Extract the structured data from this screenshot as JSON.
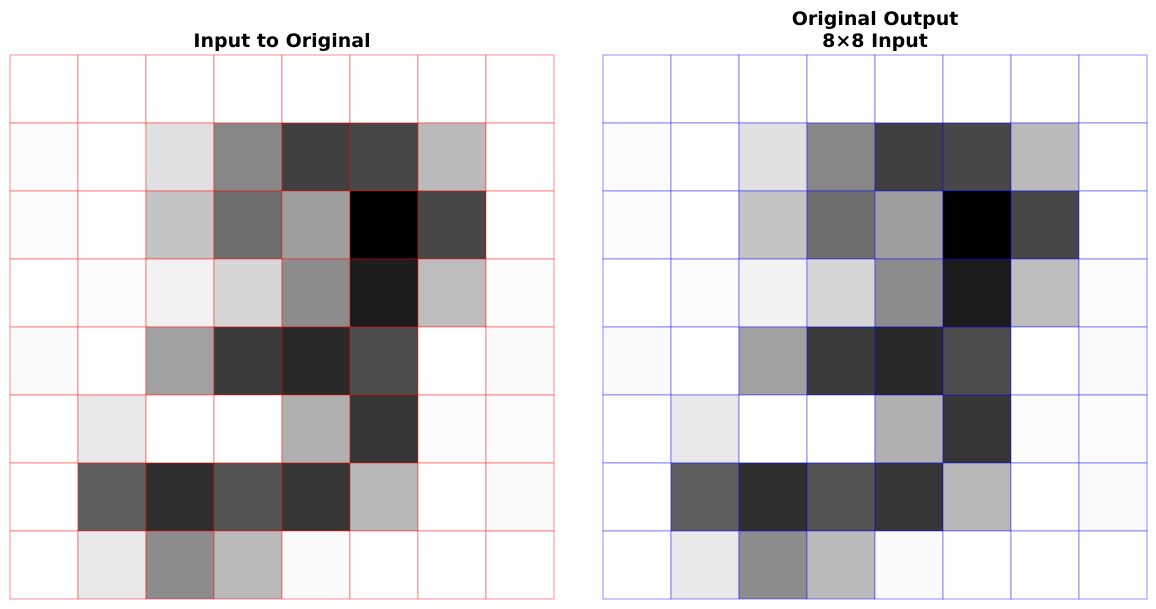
{
  "chart_data": [
    {
      "type": "heatmap",
      "title": "Input to Original",
      "colormap": "gray_r",
      "grid_color": "#ff0000",
      "rows": 8,
      "cols": 8,
      "values": [
        [
          0.0,
          0.0,
          0.0,
          0.0,
          0.0,
          0.0,
          0.0,
          0.0
        ],
        [
          0.01,
          0.0,
          0.12,
          0.47,
          0.75,
          0.72,
          0.27,
          0.0
        ],
        [
          0.01,
          0.0,
          0.23,
          0.57,
          0.38,
          1.0,
          0.72,
          0.0
        ],
        [
          0.0,
          0.01,
          0.05,
          0.16,
          0.45,
          0.89,
          0.26,
          0.01
        ],
        [
          0.02,
          0.0,
          0.37,
          0.77,
          0.84,
          0.7,
          0.0,
          0.02
        ],
        [
          0.0,
          0.09,
          0.0,
          0.0,
          0.31,
          0.79,
          0.01,
          0.01
        ],
        [
          0.0,
          0.63,
          0.82,
          0.68,
          0.79,
          0.28,
          0.0,
          0.02
        ],
        [
          0.0,
          0.09,
          0.45,
          0.27,
          0.02,
          0.0,
          0.0,
          0.0
        ]
      ]
    },
    {
      "type": "heatmap",
      "title": [
        "Original Output",
        "8×8 Input"
      ],
      "colormap": "gray_r",
      "grid_color": "#0000ff",
      "rows": 8,
      "cols": 8,
      "values": [
        [
          0.0,
          0.0,
          0.0,
          0.0,
          0.0,
          0.0,
          0.0,
          0.0
        ],
        [
          0.01,
          0.0,
          0.12,
          0.47,
          0.75,
          0.72,
          0.27,
          0.0
        ],
        [
          0.01,
          0.0,
          0.23,
          0.57,
          0.38,
          1.0,
          0.72,
          0.0
        ],
        [
          0.0,
          0.01,
          0.05,
          0.16,
          0.45,
          0.89,
          0.26,
          0.01
        ],
        [
          0.02,
          0.0,
          0.37,
          0.77,
          0.84,
          0.7,
          0.0,
          0.02
        ],
        [
          0.0,
          0.09,
          0.0,
          0.0,
          0.31,
          0.79,
          0.01,
          0.01
        ],
        [
          0.0,
          0.63,
          0.82,
          0.68,
          0.79,
          0.28,
          0.0,
          0.02
        ],
        [
          0.0,
          0.09,
          0.45,
          0.27,
          0.02,
          0.0,
          0.0,
          0.0
        ]
      ]
    }
  ]
}
